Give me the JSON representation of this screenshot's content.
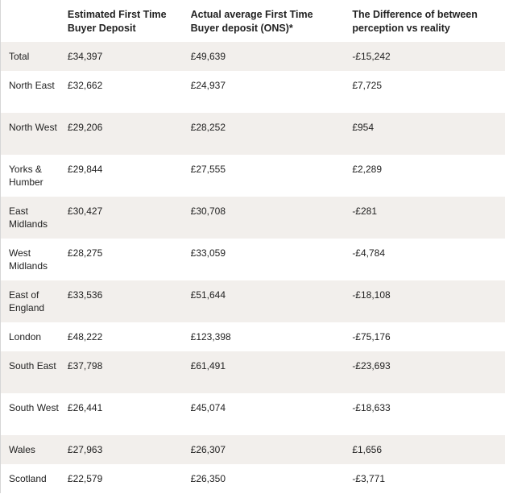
{
  "table": {
    "headers": [
      "",
      "Estimated First Time Buyer Deposit",
      "Actual average First Time Buyer deposit (ONS)*",
      "The Difference of between perception vs reality"
    ],
    "rows": [
      {
        "region": "Total",
        "estimated": "£34,397",
        "actual": "£49,639",
        "difference": "-£15,242"
      },
      {
        "region": "North East",
        "estimated": "£32,662",
        "actual": "£24,937",
        "difference": "£7,725"
      },
      {
        "region": "North West",
        "estimated": "£29,206",
        "actual": "£28,252",
        "difference": "£954"
      },
      {
        "region": "Yorks & Humber",
        "estimated": "£29,844",
        "actual": "£27,555",
        "difference": "£2,289"
      },
      {
        "region": "East Midlands",
        "estimated": "£30,427",
        "actual": "£30,708",
        "difference": "-£281"
      },
      {
        "region": "West Midlands",
        "estimated": "£28,275",
        "actual": "£33,059",
        "difference": "-£4,784"
      },
      {
        "region": "East of England",
        "estimated": "£33,536",
        "actual": "£51,644",
        "difference": "-£18,108"
      },
      {
        "region": "London",
        "estimated": "£48,222",
        "actual": "£123,398",
        "difference": "-£75,176"
      },
      {
        "region": "South East",
        "estimated": "£37,798",
        "actual": "£61,491",
        "difference": "-£23,693"
      },
      {
        "region": "South West",
        "estimated": "£26,441",
        "actual": "£45,074",
        "difference": "-£18,633"
      },
      {
        "region": "Wales",
        "estimated": "£27,963",
        "actual": "£26,307",
        "difference": "£1,656"
      },
      {
        "region": "Scotland",
        "estimated": "£22,579",
        "actual": "£26,350",
        "difference": "-£3,771"
      }
    ]
  }
}
